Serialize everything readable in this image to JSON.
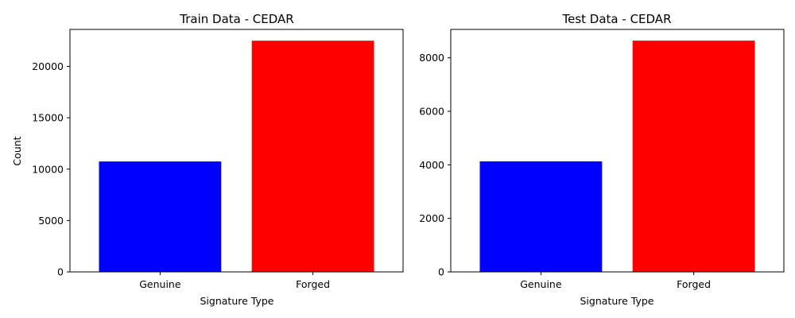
{
  "chart_data": [
    {
      "type": "bar",
      "title": "Train Data - CEDAR",
      "xlabel": "Signature Type",
      "ylabel": "Count",
      "categories": [
        "Genuine",
        "Forged"
      ],
      "values": [
        10750,
        22500
      ],
      "colors": [
        "#0000ff",
        "#ff0000"
      ],
      "ylim": [
        0,
        23600
      ],
      "yticks": [
        0,
        5000,
        10000,
        15000,
        20000
      ],
      "grid": false
    },
    {
      "type": "bar",
      "title": "Test Data - CEDAR",
      "xlabel": "Signature Type",
      "ylabel": "",
      "categories": [
        "Genuine",
        "Forged"
      ],
      "values": [
        4130,
        8640
      ],
      "colors": [
        "#0000ff",
        "#ff0000"
      ],
      "ylim": [
        0,
        9060
      ],
      "yticks": [
        0,
        2000,
        4000,
        6000,
        8000
      ],
      "grid": false
    }
  ]
}
